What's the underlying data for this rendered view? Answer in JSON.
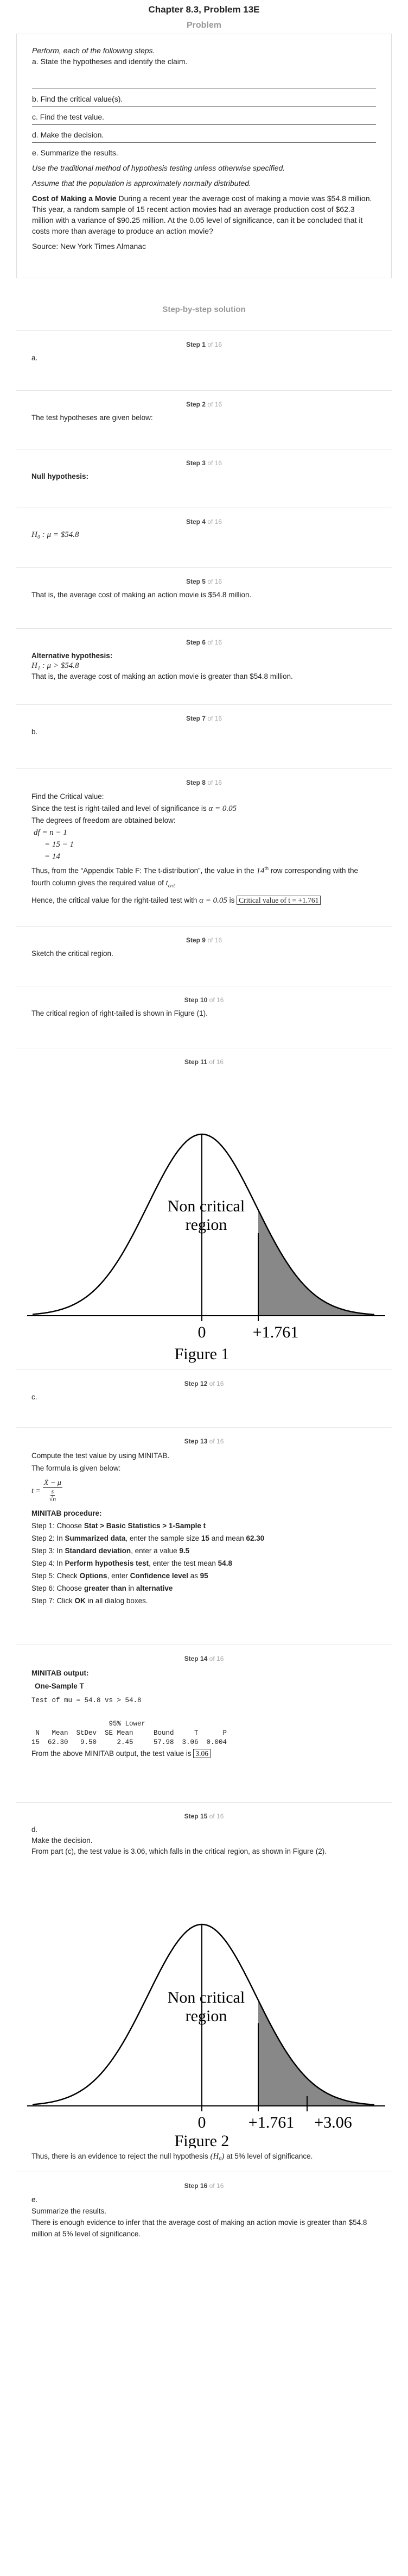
{
  "chapter_title": "Chapter 8.3, Problem 13E",
  "problem_label": "Problem",
  "problem": {
    "intro": "Perform, each of the following steps.",
    "a": "a. State the hypotheses and identify the claim.",
    "b": "b. Find the critical value(s).",
    "c": "c. Find the test value.",
    "d": "d. Make the decision.",
    "e": "e. Summarize the results.",
    "note1": "Use the traditional method of hypothesis testing unless otherwise specified.",
    "note2": "Assume that the population is approximately normally distributed.",
    "bold_title": "Cost of Making a Movie",
    "body": " During a recent year the average cost of making a movie was $54.8 million. This year, a random sample of 15 recent action movies had an average production cost of $62.3 million with a variance of $90.25 million. At the 0.05 level of significance, can it be concluded that it costs more than average to produce an action movie?",
    "source": "Source: New York Times Almanac"
  },
  "solution_label": "Step-by-step solution",
  "step_label": "Step",
  "of_label": "of",
  "total_steps": "16",
  "s1": {
    "num": "1",
    "text": "a."
  },
  "s2": {
    "num": "2",
    "text": "The test hypotheses are given below:"
  },
  "s3": {
    "num": "3",
    "text": "Null hypothesis:"
  },
  "s4": {
    "num": "4",
    "h0": "H₀ : μ = $54.8"
  },
  "s5": {
    "num": "5",
    "text": "That is, the average cost of making an action movie is $54.8 million."
  },
  "s6": {
    "num": "6",
    "head": "Alternative hypothesis:",
    "h1": "H₁ : μ > $54.8",
    "text": "That is, the average cost of making an action movie is greater than $54.8 million."
  },
  "s7": {
    "num": "7",
    "text": "b."
  },
  "s8": {
    "num": "8",
    "l1": "Find the Critical value:",
    "l2a": "Since the test is right-tailed and level of significance is ",
    "alpha": "α = 0.05",
    "l3": "The degrees of freedom are obtained below:",
    "df1": "df = n − 1",
    "df2": "= 15 − 1",
    "df3": "= 14",
    "l4a": "Thus, from the “Appendix Table F: The t-distribution”, the value in the ",
    "l4b": "14",
    "l4c": "th",
    "l4d": " row corresponding with the fourth column gives the required value of ",
    "tcrit": "t",
    "tcrit_sub": "crit",
    "l5a": "Hence, the critical value for the right-tailed test with ",
    "l5b": "α = 0.05",
    "l5c": " is ",
    "boxed": "Critical value of t = +1.761"
  },
  "s9": {
    "num": "9",
    "text": "Sketch the critical region."
  },
  "s10": {
    "num": "10",
    "text": "The critical region of right-tailed is shown in Figure (1)."
  },
  "s11": {
    "num": "11",
    "region_line1": "Non critical",
    "region_line2": "region",
    "tick0": "0",
    "tick1": "+1.761",
    "caption": "Figure 1"
  },
  "s12": {
    "num": "12",
    "text": "c."
  },
  "s13": {
    "num": "13",
    "l1": "Compute the test value by using MINITAB.",
    "l2": "The formula is given below:",
    "f_t": "t =",
    "f_num": "X̄ − μ",
    "f_s": "s",
    "f_rn": "√n",
    "proc": "MINITAB procedure:",
    "p1a": "Step 1: Choose ",
    "p1b": "Stat > Basic Statistics > 1-Sample t",
    "p2a": "Step 2: In ",
    "p2b": "Summarized data",
    "p2c": ", enter the sample size ",
    "p2d": "15",
    "p2e": " and mean ",
    "p2f": "62.30",
    "p3a": "Step 3: In ",
    "p3b": "Standard deviation",
    "p3c": ", enter a value ",
    "p3d": "9.5",
    "p4a": "Step 4: In ",
    "p4b": "Perform hypothesis test",
    "p4c": ", enter the test mean ",
    "p4d": "54.8",
    "p5a": "Step 5: Check ",
    "p5b": "Options",
    "p5c": ", enter ",
    "p5d": "Confidence level",
    "p5e": " as ",
    "p5f": "95",
    "p6a": "Step 6: Choose ",
    "p6b": "greater than",
    "p6c": " in ",
    "p6d": "alternative",
    "p7a": "Step 7: Click ",
    "p7b": "OK",
    "p7c": " in all dialog boxes."
  },
  "s14": {
    "num": "14",
    "head": "MINITAB output:",
    "sub": "One-Sample T",
    "mono1": "Test of mu = 54.8 vs > 54.8",
    "mono2": "                   95% Lower",
    "mono3": " N   Mean  StDev  SE Mean     Bound     T      P",
    "mono4": "15  62.30   9.50     2.45     57.98  3.06  0.004",
    "l1": "From the above MINITAB output, the test value is ",
    "boxed": "3.06"
  },
  "s15": {
    "num": "15",
    "l0": "d.",
    "l1": "Make the decision.",
    "l2": "From part (c), the test value is 3.06, which falls in the critical region, as shown in Figure (2).",
    "region_line1": "Non critical",
    "region_line2": "region",
    "tick0": "0",
    "tick1": "+1.761",
    "tick2": "+3.06",
    "caption": "Figure 2",
    "l3a": "Thus, there is an evidence to reject the null hypothesis ",
    "l3b": "(H₀)",
    "l3c": " at 5% level of significance."
  },
  "s16": {
    "num": "16",
    "l0": "e.",
    "l1": "Summarize the results.",
    "l2": "There is enough evidence to infer that the average cost of making an action movie is greater than $54.8 million at 5% level of significance."
  }
}
